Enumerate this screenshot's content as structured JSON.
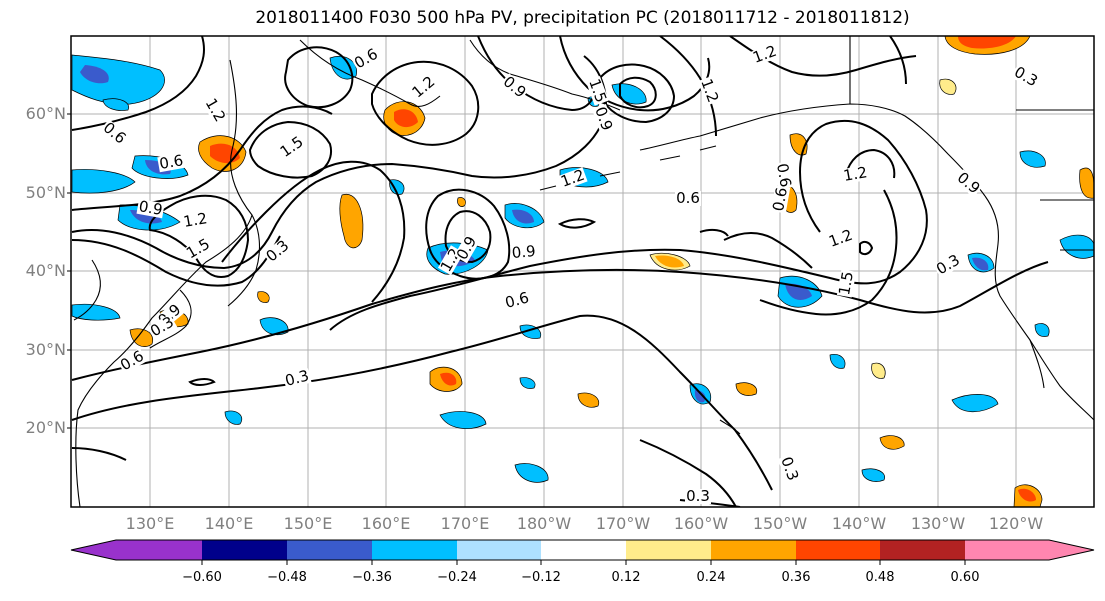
{
  "title": "2018011400 F030 500 hPa PV, precipitation PC (2018011712 - 2018011812)",
  "latitude_labels": [
    "60°N",
    "50°N",
    "40°N",
    "30°N",
    "20°N"
  ],
  "longitude_labels": [
    "130°E",
    "140°E",
    "150°E",
    "160°E",
    "170°E",
    "180°W",
    "170°W",
    "160°W",
    "150°W",
    "140°W",
    "130°W",
    "120°W"
  ],
  "colorbar": {
    "tick_labels": [
      "−0.60",
      "−0.48",
      "−0.36",
      "−0.24",
      "−0.12",
      "0.12",
      "0.24",
      "0.36",
      "0.48",
      "0.60"
    ],
    "colors": [
      "#9932cc",
      "#00008b",
      "#3a5bcc",
      "#00bfff",
      "#aee1ff",
      "#ffffff",
      "#ffec8b",
      "#ffa500",
      "#ff4500",
      "#b22222",
      "#ff86b0"
    ]
  },
  "contour_labels": [
    "0.6",
    "1.2",
    "1.2",
    "1.5",
    "0.6",
    "0.6",
    "0.9",
    "1.2",
    "1.5",
    "0.9",
    "0.3",
    "0.3",
    "0.6",
    "0.9",
    "1.2",
    "0.9",
    "1.2",
    "0.9",
    "1.5",
    "1.2",
    "0.9",
    "0.6",
    "0.3",
    "0.6",
    "1.2",
    "1.2",
    "0.6",
    "0.3",
    "0.3",
    "0.3",
    "1.2",
    "1.5",
    "0.6",
    "0.3",
    "0.9"
  ]
}
